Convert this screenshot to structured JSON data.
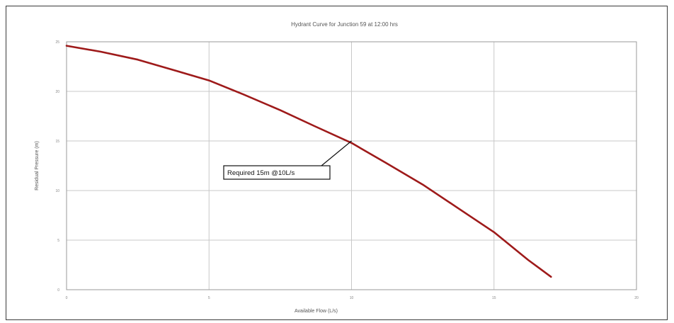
{
  "chart_data": {
    "type": "line",
    "title": "Hydrant Curve for Junction 59 at 12:00 hrs",
    "xlabel": "Available Flow (L/s)",
    "ylabel": "Residual Pressure (m)",
    "xlim": [
      0,
      20
    ],
    "ylim": [
      0,
      25
    ],
    "grid": true,
    "x_ticks": [
      "0",
      "5",
      "10",
      "15",
      "20"
    ],
    "y_ticks": [
      "0",
      "5",
      "10",
      "15",
      "20",
      "25"
    ],
    "series": [
      {
        "color": "#9e1a1a",
        "x": [
          0,
          1.2,
          2.5,
          3.7,
          5.0,
          6.2,
          7.5,
          8.7,
          10.0,
          11.2,
          12.5,
          13.7,
          15.0,
          16.2,
          17.0
        ],
        "y": [
          24.6,
          24.0,
          23.2,
          22.2,
          21.1,
          19.7,
          18.1,
          16.5,
          14.8,
          12.8,
          10.6,
          8.3,
          5.8,
          3.0,
          1.3
        ]
      }
    ],
    "annotations": [
      {
        "text": "Required 15m @10L/s",
        "x": 10,
        "y": 15
      }
    ]
  }
}
